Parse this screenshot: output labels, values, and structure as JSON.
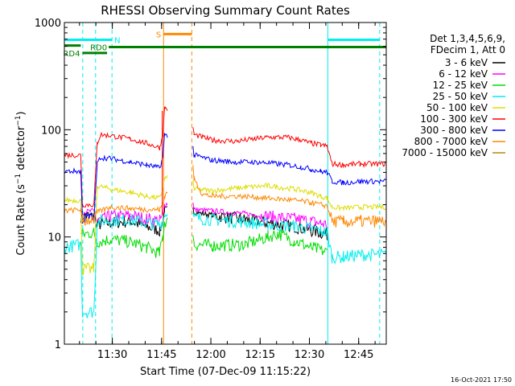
{
  "chart_data": {
    "type": "line",
    "title": "RHESSI Observing Summary Count Rates",
    "xlabel": "Start Time (07-Dec-09 11:15:22)",
    "ylabel": "Count Rate (s⁻¹ detector⁻¹)",
    "ylabel_main": "Count Rate (s",
    "ylabel_sup1": "−1",
    "ylabel_mid": " detector",
    "ylabel_sup2": "−1",
    "ylabel_end": ")",
    "y_scale": "log",
    "ylim": [
      1,
      1000
    ],
    "x_unit": "minutes after 11:15:22",
    "xlim": [
      0,
      98
    ],
    "x_ticks": [
      {
        "label": "11:30",
        "x": 14.6
      },
      {
        "label": "11:45",
        "x": 29.6
      },
      {
        "label": "12:00",
        "x": 44.6
      },
      {
        "label": "12:15",
        "x": 59.6
      },
      {
        "label": "12:30",
        "x": 74.6
      },
      {
        "label": "12:45",
        "x": 89.6
      }
    ],
    "y_ticks": [
      {
        "label": "1",
        "y": 1
      },
      {
        "label": "10",
        "y": 10
      },
      {
        "label": "100",
        "y": 100
      },
      {
        "label": "1000",
        "y": 1000
      }
    ],
    "legend_header": [
      "Det 1,3,4,5,6,9,",
      "FDecim 1, Att 0"
    ],
    "legend_placement": "right",
    "timestamp": "16-Oct-2021 17:50",
    "gaps": [
      [
        31.5,
        38.8
      ]
    ],
    "series": [
      {
        "name": "3 - 6 keV",
        "color": "#000000",
        "points": [
          [
            5,
            15.5
          ],
          [
            9,
            16
          ],
          [
            10,
            13
          ],
          [
            14,
            13.5
          ],
          [
            20,
            14
          ],
          [
            25,
            12.5
          ],
          [
            29,
            11.5
          ],
          [
            30,
            14
          ],
          [
            30.5,
            18
          ],
          [
            38.8,
            22
          ],
          [
            39.5,
            17
          ],
          [
            45,
            16
          ],
          [
            55,
            14.5
          ],
          [
            62,
            13.5
          ],
          [
            70,
            12.5
          ],
          [
            75,
            11.5
          ],
          [
            78,
            11
          ],
          [
            80,
            10.5
          ],
          [
            81.5,
            null
          ]
        ]
      },
      {
        "name": "6 - 12 keV",
        "color": "#ff00ff",
        "points": [
          [
            5,
            17
          ],
          [
            9,
            17.5
          ],
          [
            10,
            14
          ],
          [
            14,
            15.5
          ],
          [
            20,
            15.8
          ],
          [
            25,
            14.8
          ],
          [
            29,
            14.2
          ],
          [
            30,
            16
          ],
          [
            30.5,
            20
          ],
          [
            38.8,
            26
          ],
          [
            39.5,
            18
          ],
          [
            45,
            17.5
          ],
          [
            55,
            16.5
          ],
          [
            62,
            15.5
          ],
          [
            70,
            14.8
          ],
          [
            75,
            14
          ],
          [
            78,
            13.5
          ],
          [
            80,
            13
          ],
          [
            81.5,
            null
          ]
        ]
      },
      {
        "name": "12 - 25 keV",
        "color": "#00dd00",
        "points": [
          [
            5,
            10.5
          ],
          [
            9,
            11
          ],
          [
            10,
            9
          ],
          [
            14,
            9.5
          ],
          [
            20,
            9
          ],
          [
            25,
            8
          ],
          [
            29,
            7
          ],
          [
            30,
            10
          ],
          [
            30.5,
            14
          ],
          [
            38.8,
            14
          ],
          [
            39.5,
            8.5
          ],
          [
            45,
            8.3
          ],
          [
            55,
            8.5
          ],
          [
            62,
            10
          ],
          [
            65,
            10.8
          ],
          [
            70,
            9.2
          ],
          [
            75,
            8
          ],
          [
            78,
            7.5
          ],
          [
            80,
            7.2
          ],
          [
            81.5,
            null
          ]
        ]
      },
      {
        "name": "25 - 50 keV",
        "color": "#00eeee",
        "points": [
          [
            0,
            8
          ],
          [
            5,
            8.5
          ],
          [
            5.5,
            2
          ],
          [
            9,
            2
          ],
          [
            10,
            14
          ],
          [
            20,
            14.5
          ],
          [
            25,
            13.5
          ],
          [
            29,
            13
          ],
          [
            30,
            14
          ],
          [
            30.5,
            16
          ],
          [
            38.8,
            18
          ],
          [
            39.5,
            15
          ],
          [
            45,
            14.5
          ],
          [
            55,
            13.8
          ],
          [
            62,
            13
          ],
          [
            70,
            12.5
          ],
          [
            75,
            12
          ],
          [
            78,
            11.5
          ],
          [
            80,
            11
          ],
          [
            81.5,
            6.5
          ],
          [
            85,
            6.5
          ],
          [
            90,
            6.8
          ],
          [
            98,
            6.8
          ]
        ]
      },
      {
        "name": "50 - 100 keV",
        "color": "#dddd00",
        "points": [
          [
            0,
            22
          ],
          [
            5,
            22
          ],
          [
            5.5,
            5
          ],
          [
            9,
            5
          ],
          [
            10,
            30
          ],
          [
            14,
            28
          ],
          [
            20,
            26
          ],
          [
            25,
            24
          ],
          [
            29,
            23
          ],
          [
            30,
            28
          ],
          [
            30.5,
            35
          ],
          [
            38.8,
            40
          ],
          [
            39.5,
            28
          ],
          [
            45,
            27
          ],
          [
            55,
            29
          ],
          [
            62,
            30
          ],
          [
            70,
            28
          ],
          [
            75,
            26
          ],
          [
            78,
            24
          ],
          [
            80,
            23
          ],
          [
            81.5,
            19
          ],
          [
            85,
            18.5
          ],
          [
            90,
            19
          ],
          [
            98,
            19
          ]
        ]
      },
      {
        "name": "100 - 300 keV",
        "color": "#ff0000",
        "points": [
          [
            0,
            58
          ],
          [
            5,
            58
          ],
          [
            5.5,
            20
          ],
          [
            9,
            20
          ],
          [
            10,
            75
          ],
          [
            11,
            90
          ],
          [
            14,
            88
          ],
          [
            20,
            82
          ],
          [
            25,
            75
          ],
          [
            29,
            68
          ],
          [
            30,
            90
          ],
          [
            30.5,
            160
          ],
          [
            38.8,
            130
          ],
          [
            39.5,
            90
          ],
          [
            45,
            80
          ],
          [
            52,
            78
          ],
          [
            58,
            82
          ],
          [
            62,
            85
          ],
          [
            68,
            85
          ],
          [
            72,
            80
          ],
          [
            75,
            75
          ],
          [
            78,
            72
          ],
          [
            80,
            70
          ],
          [
            81.5,
            48
          ],
          [
            85,
            47
          ],
          [
            90,
            48
          ],
          [
            98,
            48
          ]
        ]
      },
      {
        "name": "300 - 800 keV",
        "color": "#0000ff",
        "points": [
          [
            0,
            41
          ],
          [
            5,
            41
          ],
          [
            5.5,
            15
          ],
          [
            9,
            15
          ],
          [
            10,
            48
          ],
          [
            11,
            55
          ],
          [
            14,
            54
          ],
          [
            20,
            50
          ],
          [
            25,
            47
          ],
          [
            29,
            44
          ],
          [
            30,
            55
          ],
          [
            30.5,
            90
          ],
          [
            38.8,
            80
          ],
          [
            39.5,
            58
          ],
          [
            45,
            52
          ],
          [
            52,
            50
          ],
          [
            58,
            50
          ],
          [
            62,
            49
          ],
          [
            68,
            47
          ],
          [
            72,
            45
          ],
          [
            75,
            43
          ],
          [
            78,
            41
          ],
          [
            80,
            40
          ],
          [
            81.5,
            33
          ],
          [
            85,
            32
          ],
          [
            90,
            33
          ],
          [
            98,
            33
          ]
        ]
      },
      {
        "name": "800 - 7000 keV",
        "color": "#ff8800",
        "points": [
          [
            0,
            17.5
          ],
          [
            5,
            18
          ],
          [
            5.5,
            14
          ],
          [
            9,
            15
          ],
          [
            10,
            17
          ],
          [
            14,
            19
          ],
          [
            20,
            18.5
          ],
          [
            25,
            18
          ],
          [
            29,
            18
          ],
          [
            30,
            20
          ],
          [
            30.5,
            24
          ],
          [
            38.8,
            60
          ],
          [
            39.5,
            35
          ],
          [
            42,
            25
          ],
          [
            45,
            24
          ],
          [
            55,
            24
          ],
          [
            62,
            23
          ],
          [
            70,
            22
          ],
          [
            75,
            21
          ],
          [
            78,
            20
          ],
          [
            80,
            19.5
          ],
          [
            81.5,
            14
          ],
          [
            85,
            13.8
          ],
          [
            90,
            14
          ],
          [
            98,
            14
          ]
        ]
      },
      {
        "name": "7000 - 15000 keV",
        "color": "#b8860b",
        "points": []
      }
    ],
    "state_bars": [
      {
        "label": "RD0",
        "color": "#008000",
        "value": 590,
        "segments": [
          [
            13.5,
            98
          ]
        ]
      },
      {
        "label": "RD4",
        "color": "#008000",
        "value": 520,
        "segments": [
          [
            5.5,
            13
          ]
        ]
      },
      {
        "label": "",
        "color": "#008000",
        "value": 610,
        "segments": [
          [
            0,
            5
          ]
        ]
      },
      {
        "label": "N",
        "color": "#00eeee",
        "value": 690,
        "segments": [
          [
            0,
            14.5
          ],
          [
            80.2,
            96
          ]
        ]
      },
      {
        "label": "S",
        "color": "#ff8800",
        "value": 780,
        "segments": [
          [
            30.2,
            38.8
          ]
        ]
      }
    ],
    "vlines": [
      {
        "x": 5.6,
        "color": "#00eeee",
        "style": "dash"
      },
      {
        "x": 9.5,
        "color": "#00eeee",
        "style": "dash"
      },
      {
        "x": 14.5,
        "color": "#00eeee",
        "style": "dash"
      },
      {
        "x": 30.2,
        "color": "#ff8800",
        "style": "solid"
      },
      {
        "x": 38.8,
        "color": "#ff8800",
        "style": "dash"
      },
      {
        "x": 80.2,
        "color": "#00eeee",
        "style": "solid"
      },
      {
        "x": 96.0,
        "color": "#00eeee",
        "style": "dash"
      }
    ]
  }
}
